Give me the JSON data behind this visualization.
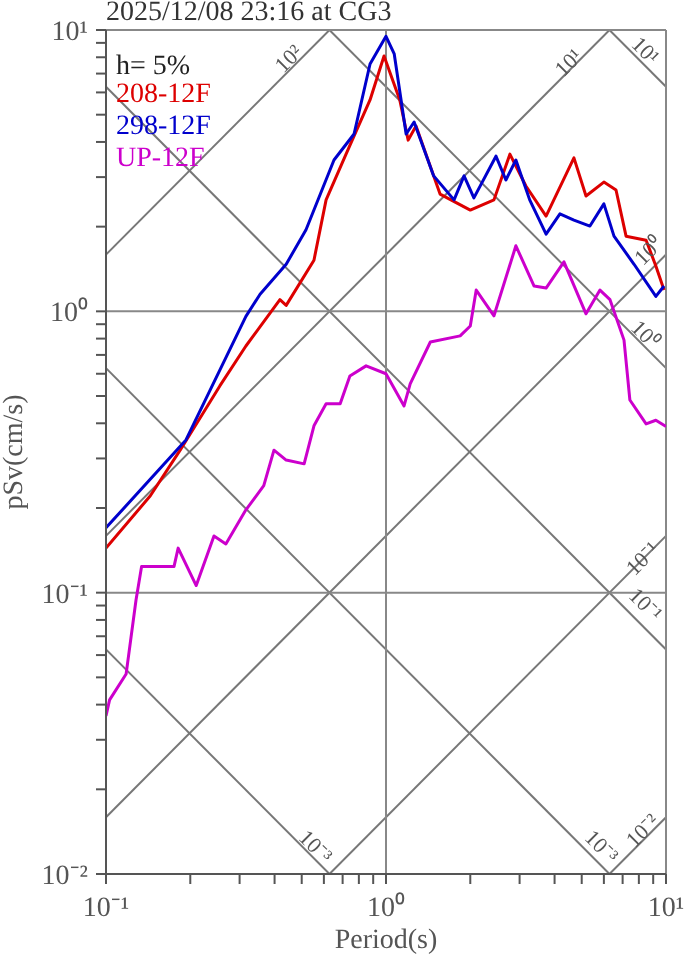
{
  "chart_data": {
    "type": "line",
    "title": "2025/12/08 23:16 at CG3",
    "xlabel": "Period(s)",
    "ylabel": "pSv(cm/s)",
    "log": "xy",
    "grid": true,
    "legend": "top left",
    "marker": "none",
    "line_style": "solid",
    "xlim": [
      0.1,
      10
    ],
    "ylim": [
      0.01,
      10
    ],
    "xticks": [
      {
        "value": 0.1,
        "label": "10⁻¹"
      },
      {
        "value": 0.2,
        "label": null
      },
      {
        "value": 0.3,
        "label": null
      },
      {
        "value": 0.4,
        "label": null
      },
      {
        "value": 0.5,
        "label": null
      },
      {
        "value": 0.6,
        "label": null
      },
      {
        "value": 0.7,
        "label": null
      },
      {
        "value": 0.8,
        "label": null
      },
      {
        "value": 0.9,
        "label": null
      },
      {
        "value": 1,
        "label": "10⁰"
      },
      {
        "value": 2,
        "label": null
      },
      {
        "value": 3,
        "label": null
      },
      {
        "value": 4,
        "label": null
      },
      {
        "value": 5,
        "label": null
      },
      {
        "value": 6,
        "label": null
      },
      {
        "value": 7,
        "label": null
      },
      {
        "value": 8,
        "label": null
      },
      {
        "value": 9,
        "label": null
      },
      {
        "value": 10,
        "label": "10¹"
      }
    ],
    "yticks": [
      {
        "value": 0.01,
        "label": "10⁻²"
      },
      {
        "value": 0.02,
        "label": null
      },
      {
        "value": 0.03,
        "label": null
      },
      {
        "value": 0.04,
        "label": null
      },
      {
        "value": 0.05,
        "label": null
      },
      {
        "value": 0.06,
        "label": null
      },
      {
        "value": 0.07,
        "label": null
      },
      {
        "value": 0.08,
        "label": null
      },
      {
        "value": 0.09,
        "label": null
      },
      {
        "value": 0.1,
        "label": "10⁻¹"
      },
      {
        "value": 0.2,
        "label": null
      },
      {
        "value": 0.3,
        "label": null
      },
      {
        "value": 0.4,
        "label": null
      },
      {
        "value": 0.5,
        "label": null
      },
      {
        "value": 0.6,
        "label": null
      },
      {
        "value": 0.7,
        "label": null
      },
      {
        "value": 0.8,
        "label": null
      },
      {
        "value": 0.9,
        "label": null
      },
      {
        "value": 1,
        "label": "10⁰"
      },
      {
        "value": 2,
        "label": null
      },
      {
        "value": 3,
        "label": null
      },
      {
        "value": 4,
        "label": null
      },
      {
        "value": 5,
        "label": null
      },
      {
        "value": 6,
        "label": null
      },
      {
        "value": 7,
        "label": null
      },
      {
        "value": 8,
        "label": null
      },
      {
        "value": 9,
        "label": null
      },
      {
        "value": 10,
        "label": "10¹"
      }
    ],
    "annotations": [
      "h= 5%",
      "10²",
      "10¹",
      "10¹",
      "10⁰",
      "10⁰",
      "10⁻¹",
      "10⁻¹",
      "10⁻²",
      "10⁻³",
      "10⁻³"
    ],
    "series": [
      {
        "name": "208-12F",
        "color": "#dd0000",
        "x": [
          0.1,
          0.144,
          0.184,
          0.255,
          0.316,
          0.418,
          0.44,
          0.553,
          0.611,
          0.72,
          0.877,
          0.984,
          1.12,
          1.2,
          1.28,
          1.56,
          2.0,
          2.43,
          2.77,
          3.16,
          3.73,
          4.69,
          5.18,
          6.0,
          6.63,
          7.2,
          8.49,
          9.2,
          9.84
        ],
        "values": [
          0.144,
          0.221,
          0.321,
          0.543,
          0.753,
          1.1,
          1.05,
          1.52,
          2.49,
          3.62,
          5.64,
          8.08,
          5.64,
          4.06,
          4.56,
          2.61,
          2.29,
          2.49,
          3.62,
          2.79,
          2.18,
          3.51,
          2.57,
          2.88,
          2.7,
          1.85,
          1.79,
          1.45,
          1.19
        ]
      },
      {
        "name": "298-12F",
        "color": "#0000cc",
        "x": [
          0.1,
          0.193,
          0.316,
          0.355,
          0.44,
          0.518,
          0.652,
          0.769,
          0.877,
          1.0,
          1.07,
          1.18,
          1.26,
          1.48,
          1.75,
          1.9,
          2.06,
          2.47,
          2.68,
          2.91,
          3.26,
          3.73,
          4.18,
          4.69,
          5.35,
          6.0,
          6.52,
          7.69,
          9.2,
          9.84
        ],
        "values": [
          0.17,
          0.349,
          0.96,
          1.15,
          1.47,
          1.95,
          3.45,
          4.27,
          7.57,
          9.5,
          8.22,
          4.27,
          4.71,
          3.03,
          2.49,
          3.03,
          2.53,
          3.56,
          2.93,
          3.45,
          2.49,
          1.88,
          2.22,
          2.11,
          2.01,
          2.41,
          1.85,
          1.47,
          1.13,
          1.23
        ]
      },
      {
        "name": "UP-12F",
        "color": "#cc00cc",
        "x": [
          0.1,
          0.103,
          0.118,
          0.128,
          0.134,
          0.175,
          0.181,
          0.21,
          0.243,
          0.268,
          0.316,
          0.366,
          0.398,
          0.44,
          0.51,
          0.553,
          0.611,
          0.686,
          0.743,
          0.849,
          1.0,
          1.16,
          1.22,
          1.44,
          1.84,
          2.0,
          2.1,
          2.43,
          2.91,
          3.38,
          3.73,
          4.32,
          5.18,
          5.81,
          6.31,
          7.08,
          7.43,
          8.49,
          9.2,
          10
        ],
        "values": [
          0.0365,
          0.0416,
          0.0514,
          0.0942,
          0.124,
          0.124,
          0.144,
          0.106,
          0.159,
          0.149,
          0.197,
          0.24,
          0.321,
          0.296,
          0.287,
          0.392,
          0.469,
          0.469,
          0.589,
          0.64,
          0.6,
          0.461,
          0.552,
          0.778,
          0.818,
          0.887,
          1.19,
          0.964,
          1.71,
          1.23,
          1.21,
          1.5,
          0.98,
          1.19,
          1.1,
          0.79,
          0.484,
          0.398,
          0.41,
          0.39
        ]
      }
    ]
  }
}
